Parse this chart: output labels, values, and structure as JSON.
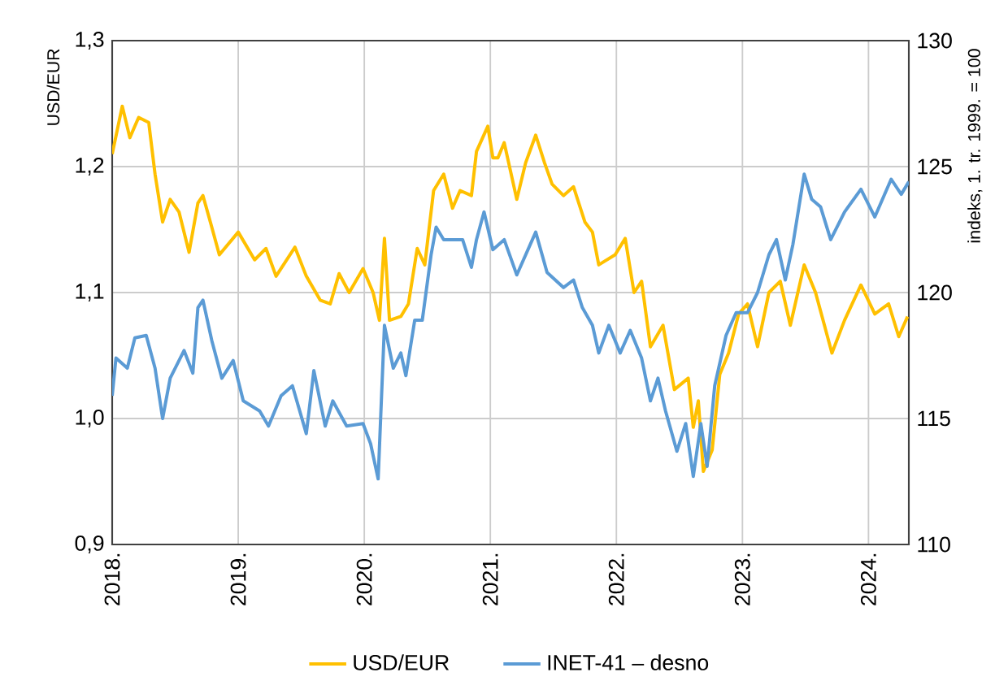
{
  "chart_data": {
    "type": "line",
    "ylabel": "USD/EUR",
    "y2label": "indeks, 1. tr. 1999. = 100",
    "xlim": [
      2018,
      2024.32
    ],
    "xticks": [
      {
        "value": 2018,
        "label": "2018."
      },
      {
        "value": 2019,
        "label": "2019."
      },
      {
        "value": 2020,
        "label": "2020."
      },
      {
        "value": 2021,
        "label": "2021."
      },
      {
        "value": 2022,
        "label": "2022."
      },
      {
        "value": 2023,
        "label": "2023."
      },
      {
        "value": 2024,
        "label": "2024."
      }
    ],
    "ylim": [
      0.9,
      1.3
    ],
    "yticks": [
      {
        "value": 0.9,
        "label": "0,9"
      },
      {
        "value": 1.0,
        "label": "1,0"
      },
      {
        "value": 1.1,
        "label": "1,1"
      },
      {
        "value": 1.2,
        "label": "1,2"
      },
      {
        "value": 1.3,
        "label": "1,3"
      }
    ],
    "y2lim": [
      110,
      130
    ],
    "y2ticks": [
      110,
      115,
      120,
      125,
      130
    ],
    "grid": true,
    "legend": "bottom",
    "series": [
      {
        "name": "USD/EUR",
        "color": "#ffc000",
        "axis": "y",
        "x": [
          2018.0,
          2018.08,
          2018.14,
          2018.21,
          2018.29,
          2018.34,
          2018.4,
          2018.46,
          2018.53,
          2018.61,
          2018.68,
          2018.72,
          2018.79,
          2018.85,
          2019.0,
          2019.13,
          2019.22,
          2019.3,
          2019.45,
          2019.54,
          2019.65,
          2019.73,
          2019.8,
          2019.88,
          2019.99,
          2020.07,
          2020.12,
          2020.16,
          2020.2,
          2020.29,
          2020.35,
          2020.42,
          2020.48,
          2020.55,
          2020.63,
          2020.7,
          2020.76,
          2020.85,
          2020.89,
          2020.98,
          2021.02,
          2021.06,
          2021.11,
          2021.21,
          2021.28,
          2021.36,
          2021.43,
          2021.49,
          2021.58,
          2021.66,
          2021.75,
          2021.81,
          2021.86,
          2021.99,
          2022.07,
          2022.14,
          2022.2,
          2022.27,
          2022.37,
          2022.46,
          2022.57,
          2022.61,
          2022.65,
          2022.69,
          2022.76,
          2022.82,
          2022.89,
          2022.97,
          2023.04,
          2023.12,
          2023.21,
          2023.3,
          2023.38,
          2023.49,
          2023.58,
          2023.71,
          2023.81,
          2023.94,
          2024.05,
          2024.16,
          2024.24,
          2024.31
        ],
        "values": [
          1.21,
          1.248,
          1.223,
          1.239,
          1.235,
          1.194,
          1.156,
          1.174,
          1.164,
          1.132,
          1.171,
          1.177,
          1.152,
          1.13,
          1.148,
          1.126,
          1.135,
          1.113,
          1.136,
          1.113,
          1.094,
          1.091,
          1.115,
          1.1,
          1.119,
          1.1,
          1.078,
          1.143,
          1.078,
          1.081,
          1.091,
          1.135,
          1.122,
          1.181,
          1.194,
          1.167,
          1.181,
          1.177,
          1.212,
          1.232,
          1.207,
          1.207,
          1.219,
          1.174,
          1.203,
          1.225,
          1.203,
          1.186,
          1.177,
          1.184,
          1.156,
          1.148,
          1.122,
          1.13,
          1.143,
          1.1,
          1.109,
          1.057,
          1.074,
          1.023,
          1.032,
          0.993,
          1.014,
          0.958,
          0.975,
          1.035,
          1.052,
          1.083,
          1.091,
          1.057,
          1.1,
          1.109,
          1.074,
          1.122,
          1.1,
          1.052,
          1.078,
          1.106,
          1.083,
          1.091,
          1.065,
          1.081
        ]
      },
      {
        "name": "INET-41 – desno",
        "color": "#5b9bd5",
        "axis": "y2",
        "x": [
          2018.0,
          2018.03,
          2018.12,
          2018.18,
          2018.27,
          2018.34,
          2018.4,
          2018.46,
          2018.57,
          2018.64,
          2018.68,
          2018.72,
          2018.79,
          2018.87,
          2018.96,
          2019.04,
          2019.17,
          2019.24,
          2019.34,
          2019.43,
          2019.54,
          2019.6,
          2019.69,
          2019.75,
          2019.86,
          2019.99,
          2020.05,
          2020.11,
          2020.16,
          2020.23,
          2020.29,
          2020.33,
          2020.4,
          2020.46,
          2020.53,
          2020.57,
          2020.63,
          2020.72,
          2020.78,
          2020.85,
          2020.89,
          2020.95,
          2021.02,
          2021.11,
          2021.21,
          2021.36,
          2021.45,
          2021.58,
          2021.66,
          2021.73,
          2021.81,
          2021.86,
          2021.94,
          2022.03,
          2022.11,
          2022.2,
          2022.27,
          2022.33,
          2022.39,
          2022.48,
          2022.55,
          2022.61,
          2022.67,
          2022.72,
          2022.78,
          2022.87,
          2022.95,
          2023.04,
          2023.12,
          2023.21,
          2023.27,
          2023.34,
          2023.4,
          2023.49,
          2023.55,
          2023.62,
          2023.7,
          2023.81,
          2023.94,
          2024.05,
          2024.18,
          2024.26,
          2024.32
        ],
        "values": [
          115.9,
          117.4,
          117.0,
          118.2,
          118.3,
          117.0,
          115.0,
          116.6,
          117.7,
          116.8,
          119.4,
          119.7,
          118.1,
          116.6,
          117.3,
          115.7,
          115.3,
          114.7,
          115.9,
          116.3,
          114.4,
          116.9,
          114.7,
          115.7,
          114.7,
          114.8,
          114.0,
          112.6,
          118.7,
          117.0,
          117.6,
          116.7,
          118.9,
          118.9,
          121.5,
          122.6,
          122.1,
          122.1,
          122.1,
          121.0,
          122.1,
          123.2,
          121.7,
          122.1,
          120.7,
          122.4,
          120.8,
          120.2,
          120.5,
          119.4,
          118.7,
          117.6,
          118.7,
          117.6,
          118.5,
          117.4,
          115.7,
          116.6,
          115.3,
          113.7,
          114.8,
          112.7,
          114.8,
          113.1,
          116.3,
          118.3,
          119.2,
          119.2,
          120.0,
          121.5,
          122.1,
          120.5,
          121.9,
          124.7,
          123.7,
          123.4,
          122.1,
          123.2,
          124.1,
          123.0,
          124.5,
          123.9,
          124.4
        ]
      }
    ]
  }
}
